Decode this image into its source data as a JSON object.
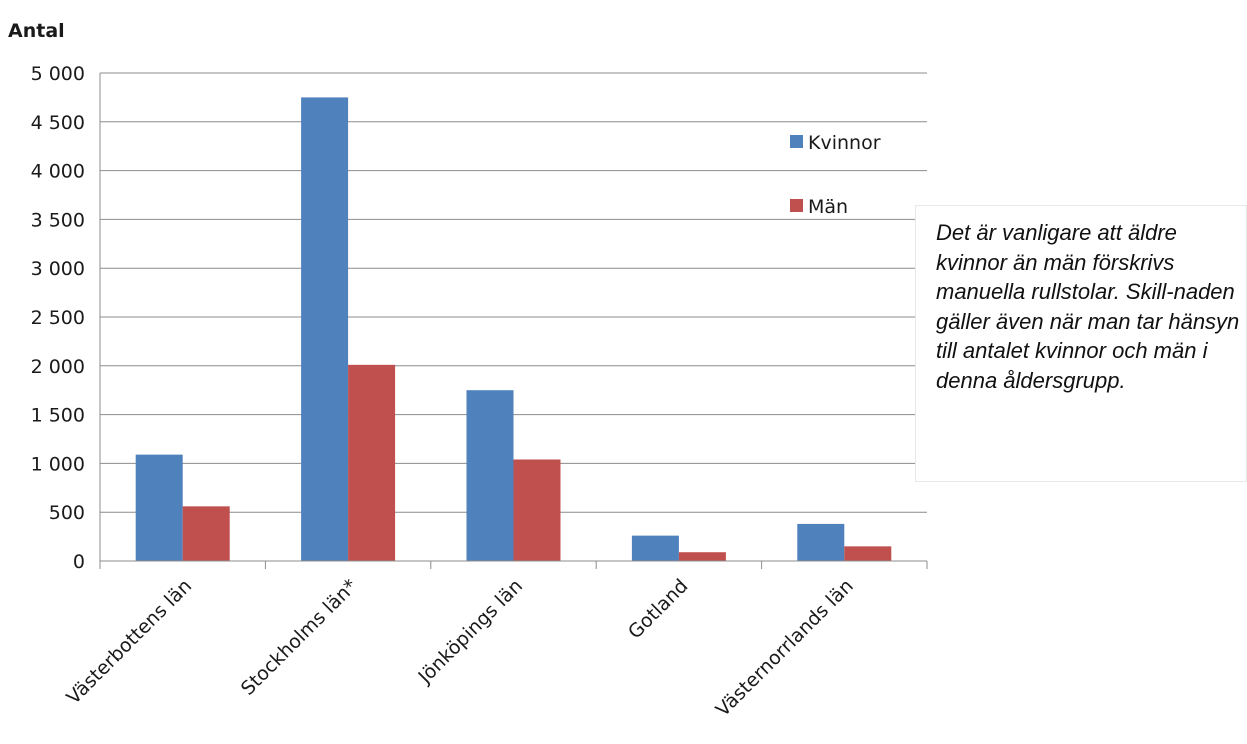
{
  "chart_data": {
    "type": "bar",
    "ylabel": "Antal",
    "xlabel": "",
    "categories": [
      "Västerbottens län",
      "Stockholms län*",
      "Jönköpings län",
      "Gotland",
      "Västernorrlands län"
    ],
    "series": [
      {
        "name": "Kvinnor",
        "color": "#4F81BD",
        "values": [
          1090,
          4750,
          1750,
          260,
          380
        ]
      },
      {
        "name": "Män",
        "color": "#C0504D",
        "values": [
          560,
          2010,
          1040,
          90,
          150
        ]
      }
    ],
    "ylim": [
      0,
      5000
    ],
    "yticks": [
      0,
      500,
      1000,
      1500,
      2000,
      2500,
      3000,
      3500,
      4000,
      4500,
      5000
    ],
    "ytick_labels": [
      "0",
      "500",
      "1 000",
      "1 500",
      "2 000",
      "2 500",
      "3 000",
      "3 500",
      "4 000",
      "4 500",
      "5 000"
    ],
    "grid": true,
    "legend_position": "top-right",
    "annotation": "Det är vanligare att äldre kvinnor än män förskrivs manuella rullstolar. Skill-naden gäller även när man tar hänsyn till antalet kvinnor och män i denna åldersgrupp."
  }
}
